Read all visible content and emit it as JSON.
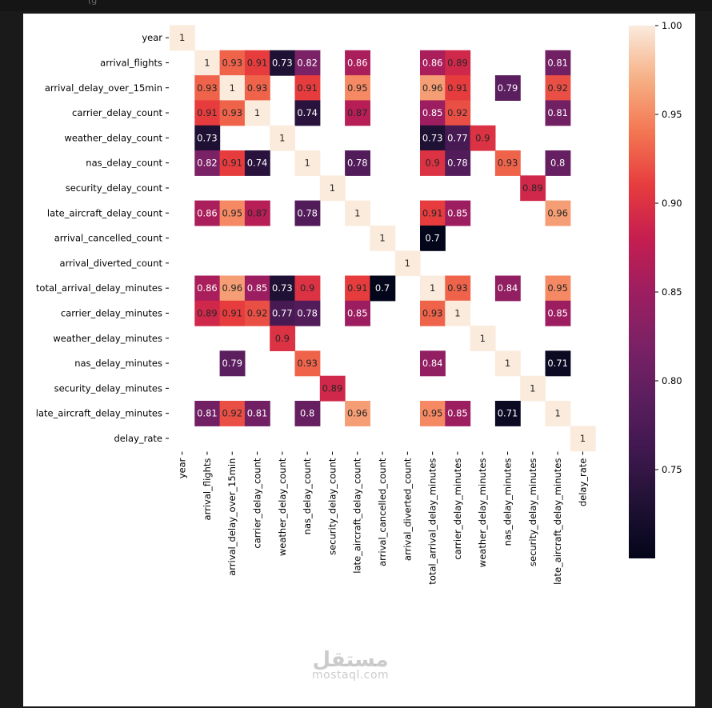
{
  "window": {
    "caption_fragment": "(g"
  },
  "watermark": {
    "arabic": "مستقل",
    "latin": "mostaql.com"
  },
  "chart_data": {
    "type": "heatmap",
    "title": "",
    "labels": [
      "year",
      "arrival_flights",
      "arrival_delay_over_15min",
      "carrier_delay_count",
      "weather_delay_count",
      "nas_delay_count",
      "security_delay_count",
      "late_aircraft_delay_count",
      "arrival_cancelled_count",
      "arrival_diverted_count",
      "total_arrival_delay_minutes",
      "carrier_delay_minutes",
      "weather_delay_minutes",
      "nas_delay_minutes",
      "security_delay_minutes",
      "late_aircraft_delay_minutes",
      "delay_rate"
    ],
    "cells": [
      [
        0,
        0,
        "1"
      ],
      [
        1,
        1,
        "1"
      ],
      [
        1,
        2,
        "0.93"
      ],
      [
        1,
        3,
        "0.91"
      ],
      [
        1,
        4,
        "0.73"
      ],
      [
        1,
        5,
        "0.82"
      ],
      [
        1,
        7,
        "0.86"
      ],
      [
        1,
        10,
        "0.86"
      ],
      [
        1,
        11,
        "0.89"
      ],
      [
        1,
        15,
        "0.81"
      ],
      [
        2,
        1,
        "0.93"
      ],
      [
        2,
        2,
        "1"
      ],
      [
        2,
        3,
        "0.93"
      ],
      [
        2,
        5,
        "0.91"
      ],
      [
        2,
        7,
        "0.95"
      ],
      [
        2,
        10,
        "0.96"
      ],
      [
        2,
        11,
        "0.91"
      ],
      [
        2,
        13,
        "0.79"
      ],
      [
        2,
        15,
        "0.92"
      ],
      [
        3,
        1,
        "0.91"
      ],
      [
        3,
        2,
        "0.93"
      ],
      [
        3,
        3,
        "1"
      ],
      [
        3,
        5,
        "0.74"
      ],
      [
        3,
        7,
        "0.87"
      ],
      [
        3,
        10,
        "0.85"
      ],
      [
        3,
        11,
        "0.92"
      ],
      [
        3,
        15,
        "0.81"
      ],
      [
        4,
        1,
        "0.73"
      ],
      [
        4,
        4,
        "1"
      ],
      [
        4,
        10,
        "0.73"
      ],
      [
        4,
        11,
        "0.77"
      ],
      [
        4,
        12,
        "0.9"
      ],
      [
        5,
        1,
        "0.82"
      ],
      [
        5,
        2,
        "0.91"
      ],
      [
        5,
        3,
        "0.74"
      ],
      [
        5,
        5,
        "1"
      ],
      [
        5,
        7,
        "0.78"
      ],
      [
        5,
        10,
        "0.9"
      ],
      [
        5,
        11,
        "0.78"
      ],
      [
        5,
        13,
        "0.93"
      ],
      [
        5,
        15,
        "0.8"
      ],
      [
        6,
        6,
        "1"
      ],
      [
        6,
        14,
        "0.89"
      ],
      [
        7,
        1,
        "0.86"
      ],
      [
        7,
        2,
        "0.95"
      ],
      [
        7,
        3,
        "0.87"
      ],
      [
        7,
        5,
        "0.78"
      ],
      [
        7,
        7,
        "1"
      ],
      [
        7,
        10,
        "0.91"
      ],
      [
        7,
        11,
        "0.85"
      ],
      [
        7,
        15,
        "0.96"
      ],
      [
        8,
        8,
        "1"
      ],
      [
        8,
        10,
        "0.7"
      ],
      [
        9,
        9,
        "1"
      ],
      [
        10,
        1,
        "0.86"
      ],
      [
        10,
        2,
        "0.96"
      ],
      [
        10,
        3,
        "0.85"
      ],
      [
        10,
        4,
        "0.73"
      ],
      [
        10,
        5,
        "0.9"
      ],
      [
        10,
        7,
        "0.91"
      ],
      [
        10,
        8,
        "0.7"
      ],
      [
        10,
        10,
        "1"
      ],
      [
        10,
        11,
        "0.93"
      ],
      [
        10,
        13,
        "0.84"
      ],
      [
        10,
        15,
        "0.95"
      ],
      [
        11,
        1,
        "0.89"
      ],
      [
        11,
        2,
        "0.91"
      ],
      [
        11,
        3,
        "0.92"
      ],
      [
        11,
        4,
        "0.77"
      ],
      [
        11,
        5,
        "0.78"
      ],
      [
        11,
        7,
        "0.85"
      ],
      [
        11,
        10,
        "0.93"
      ],
      [
        11,
        11,
        "1"
      ],
      [
        11,
        15,
        "0.85"
      ],
      [
        12,
        4,
        "0.9"
      ],
      [
        12,
        12,
        "1"
      ],
      [
        13,
        2,
        "0.79"
      ],
      [
        13,
        5,
        "0.93"
      ],
      [
        13,
        10,
        "0.84"
      ],
      [
        13,
        13,
        "1"
      ],
      [
        13,
        15,
        "0.71"
      ],
      [
        14,
        6,
        "0.89"
      ],
      [
        14,
        14,
        "1"
      ],
      [
        15,
        1,
        "0.81"
      ],
      [
        15,
        2,
        "0.92"
      ],
      [
        15,
        3,
        "0.81"
      ],
      [
        15,
        5,
        "0.8"
      ],
      [
        15,
        7,
        "0.96"
      ],
      [
        15,
        10,
        "0.95"
      ],
      [
        15,
        11,
        "0.85"
      ],
      [
        15,
        13,
        "0.71"
      ],
      [
        15,
        15,
        "1"
      ],
      [
        16,
        16,
        "1"
      ]
    ],
    "colorbar": {
      "min": 0.7,
      "max": 1.0,
      "ticks": [
        "0.75",
        "0.80",
        "0.85",
        "0.90",
        "0.95",
        "1.00"
      ],
      "colormap": "rocket"
    },
    "annotation_colors": {
      "light": "#ffffff",
      "dark": "#262626"
    }
  }
}
